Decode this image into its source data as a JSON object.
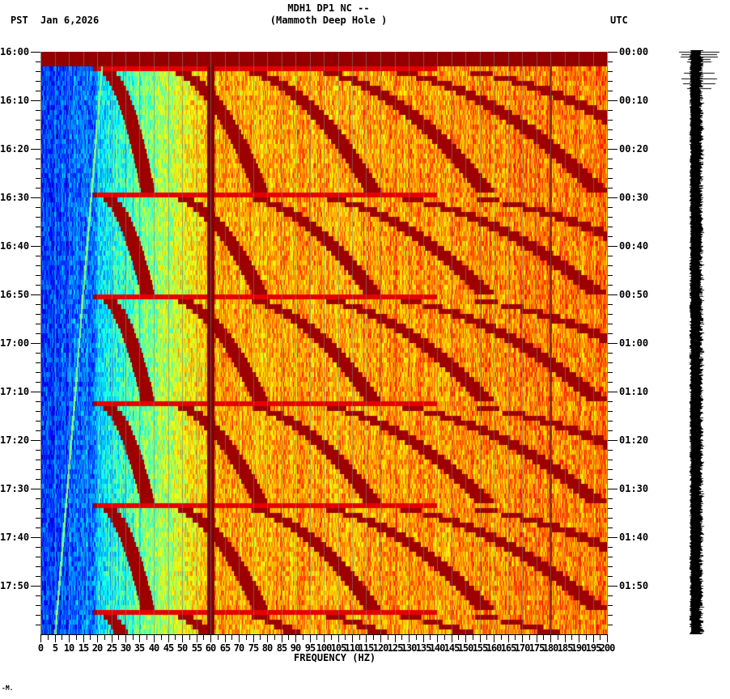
{
  "header": {
    "title_line1": "MDH1 DP1 NC --",
    "title_line2": "(Mammoth Deep Hole )",
    "left_timezone": "PST",
    "date": "Jan 6,2026",
    "right_timezone": "UTC"
  },
  "footer": {
    "mark": "-M."
  },
  "colors": {
    "low": "#1e6ef0",
    "cyan": "#00e0f0",
    "green": "#7fe87a",
    "yellow": "#f5f020",
    "orange": "#ff8000",
    "red": "#e01010",
    "darkred": "#800000",
    "gridline": "#808080",
    "trace": "#000000"
  },
  "chart_data": {
    "type": "heatmap",
    "title": "MDH1 DP1 NC -- (Mammoth Deep Hole )",
    "xlabel": "FREQUENCY (HZ)",
    "ylabel_left": "PST",
    "ylabel_right": "UTC",
    "date": "Jan 6,2026",
    "xlim": [
      0,
      200
    ],
    "x_ticks": [
      0,
      5,
      10,
      15,
      20,
      25,
      30,
      35,
      40,
      45,
      50,
      55,
      60,
      65,
      70,
      75,
      80,
      85,
      90,
      95,
      100,
      105,
      110,
      115,
      120,
      125,
      130,
      135,
      140,
      145,
      150,
      155,
      160,
      165,
      170,
      175,
      180,
      185,
      190,
      195,
      200
    ],
    "x_tick_labels": [
      "0",
      "5",
      "10",
      "15",
      "20",
      "25",
      "30",
      "35",
      "40",
      "45",
      "50",
      "55",
      "60",
      "65",
      "70",
      "75",
      "80",
      "85",
      "90",
      "95",
      "100",
      "105",
      "110",
      "115",
      "120",
      "125",
      "130",
      "135",
      "140",
      "145",
      "150",
      "155",
      "160",
      "165",
      "170",
      "175",
      "180",
      "185",
      "190",
      "195",
      "200"
    ],
    "y_range_minutes": [
      0,
      120
    ],
    "y_ticks_left": [
      "16:00",
      "16:10",
      "16:20",
      "16:30",
      "16:40",
      "16:50",
      "17:00",
      "17:10",
      "17:20",
      "17:30",
      "17:40",
      "17:50"
    ],
    "y_ticks_right": [
      "00:00",
      "00:10",
      "00:20",
      "00:30",
      "00:40",
      "00:50",
      "01:00",
      "01:10",
      "01:20",
      "01:30",
      "01:40",
      "01:50"
    ],
    "minor_tick_interval_minutes": 2,
    "grid": {
      "vertical_every_hz": 5
    },
    "features": {
      "persistent_line_hz": 60,
      "weak_line_hz": 180,
      "sweep_cycle_start_minutes": [
        0,
        3,
        29,
        50,
        72,
        93,
        115
      ],
      "low_freq_drift_line_hz": [
        22,
        5
      ],
      "colormap": "jet (blue=low, dark red=high)"
    },
    "side_panel": "seismogram trace (black) spanning 16:00–18:00 with large transients near start"
  }
}
